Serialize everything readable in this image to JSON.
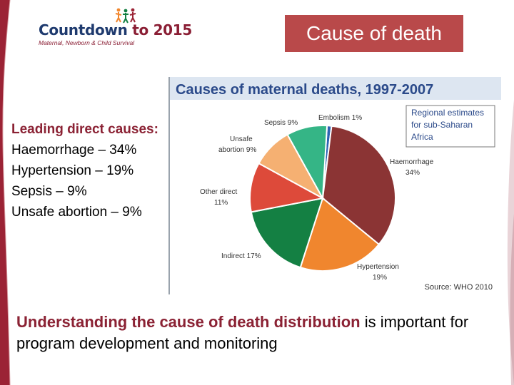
{
  "logo": {
    "title_part1": "Countdown",
    "title_part2": "to 2015",
    "subtitle": "Maternal, Newborn & Child Survival"
  },
  "header": {
    "title": "Cause of death"
  },
  "leading": {
    "heading": "Leading direct causes:",
    "items": [
      "Haemorrhage – 34%",
      "Hypertension – 19%",
      "Sepsis – 9%",
      "Unsafe abortion – 9%"
    ]
  },
  "bottom": {
    "highlight": "Understanding the cause of death distribution",
    "rest": " is important for program development and monitoring"
  },
  "colors": {
    "accent_red": "#b9494a",
    "dark_red": "#8b2234",
    "navy": "#1e3a6e"
  },
  "chart_data": {
    "type": "pie",
    "title": "Causes of maternal deaths, 1997-2007",
    "note": [
      "Regional estimates",
      "for sub-Saharan",
      "Africa"
    ],
    "source": "Source: WHO 2010",
    "slices": [
      {
        "label": "Embolism",
        "value": 1,
        "pct": "1%",
        "color": "#2e62b3"
      },
      {
        "label": "Haemorrhage",
        "value": 34,
        "pct": "34%",
        "color": "#8b3434"
      },
      {
        "label": "Hypertension",
        "value": 19,
        "pct": "19%",
        "color": "#f0862e"
      },
      {
        "label": "Indirect",
        "value": 17,
        "pct": "17%",
        "color": "#148043"
      },
      {
        "label": "Other direct",
        "value": 11,
        "pct": "11%",
        "color": "#dd4a3a"
      },
      {
        "label": "Unsafe abortion",
        "value": 9,
        "pct": "9%",
        "color": "#f5b072"
      },
      {
        "label": "Sepsis",
        "value": 9,
        "pct": "9%",
        "color": "#35b586"
      }
    ]
  }
}
